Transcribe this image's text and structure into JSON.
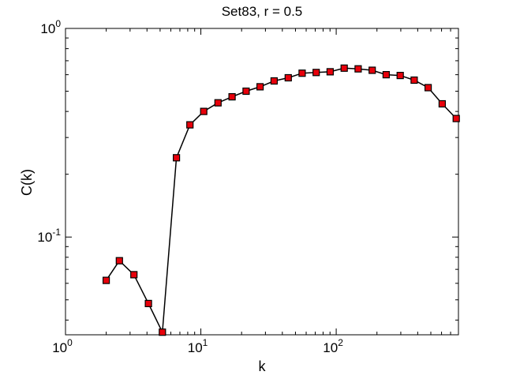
{
  "chart_data": {
    "type": "line",
    "title": "Set83, r = 0.5",
    "xlabel": "k",
    "ylabel": "C(k)",
    "xscale": "log",
    "yscale": "log",
    "xlim": [
      1,
      800
    ],
    "ylim": [
      0.034,
      1
    ],
    "grid": false,
    "legend": "none",
    "x_ticks": [
      {
        "value": 1,
        "base": "10",
        "exp": "0"
      },
      {
        "value": 10,
        "base": "10",
        "exp": "1"
      },
      {
        "value": 100,
        "base": "10",
        "exp": "2"
      }
    ],
    "y_ticks": [
      {
        "value": 0.1,
        "base": "10",
        "exp": "-1"
      },
      {
        "value": 1,
        "base": "10",
        "exp": "0"
      }
    ],
    "marker": "square",
    "marker_color": "#e8000b",
    "line_color": "#000000",
    "x": [
      2,
      2.5,
      3.2,
      4.1,
      5.2,
      6.6,
      8.3,
      10.5,
      13.4,
      17,
      21.6,
      27.4,
      34.8,
      44.2,
      56,
      71.1,
      90.2,
      114.5,
      145.3,
      184.4,
      234,
      297,
      377,
      478,
      607,
      770
    ],
    "y": [
      0.062,
      0.077,
      0.066,
      0.048,
      0.035,
      0.24,
      0.345,
      0.4,
      0.44,
      0.47,
      0.5,
      0.525,
      0.56,
      0.58,
      0.61,
      0.615,
      0.62,
      0.645,
      0.64,
      0.63,
      0.6,
      0.595,
      0.565,
      0.52,
      0.435,
      0.37
    ]
  }
}
